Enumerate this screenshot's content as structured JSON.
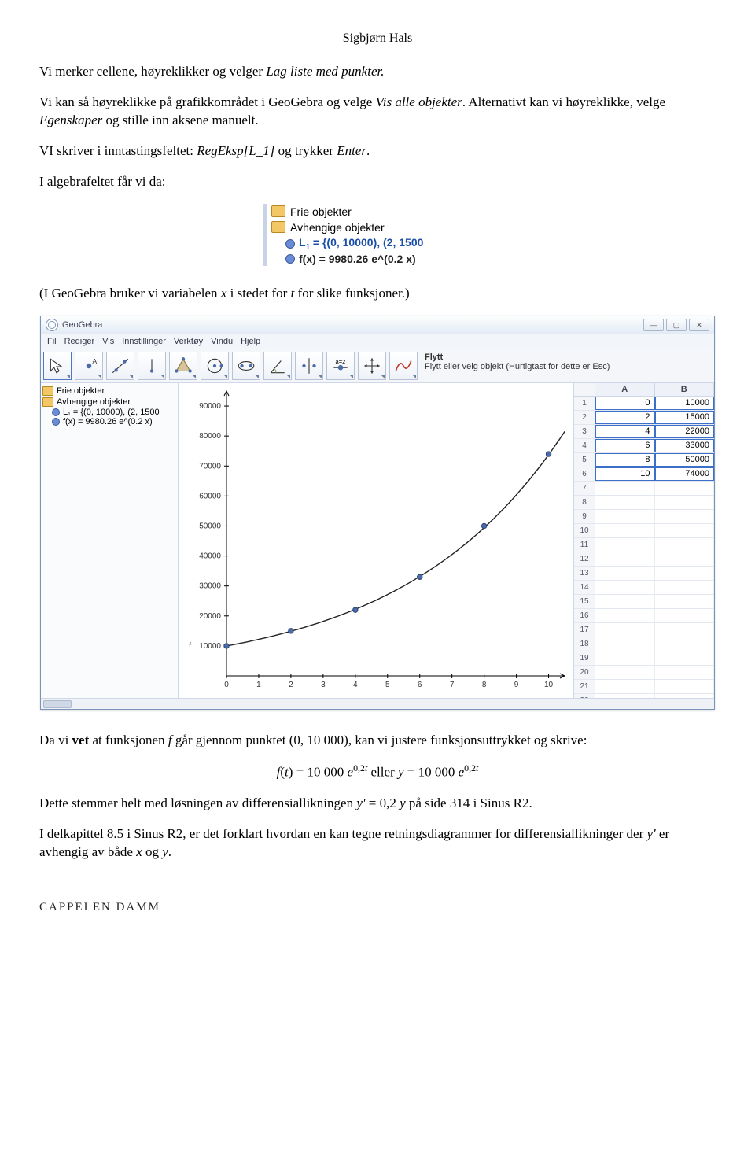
{
  "author": "Sigbjørn Hals",
  "para1_a": "Vi merker cellene, høyreklikker og velger ",
  "para1_b": "Lag liste med punkter.",
  "para2_a": "Vi kan så høyreklikke på grafikkområdet i GeoGebra og velge ",
  "para2_b": "Vis alle objekter",
  "para2_c": ". Alternativt kan vi høyreklikke, velge ",
  "para2_d": "Egenskaper",
  "para2_e": " og stille inn aksene manuelt.",
  "para3_a": "VI skriver i inntastingsfeltet: ",
  "para3_b": "RegEksp[L_1]",
  "para3_c": " og trykker ",
  "para3_d": "Enter",
  "para3_e": ".",
  "para4": "I algebrafeltet får vi da:",
  "alg1_label_free": "Frie objekter",
  "alg1_label_dep": "Avhengige objekter",
  "alg1_L1_html": "L",
  "alg1_L1_sub": "1",
  "alg1_L1_rest": " = {(0, 10000), (2, 1500",
  "alg1_fx": "f(x) = 9980.26 e^(0.2 x)",
  "para5_a": "(I GeoGebra bruker vi variabelen ",
  "para5_b": "x",
  "para5_c": " i stedet for ",
  "para5_d": "t",
  "para5_e": " for slike funksjoner.)",
  "gg": {
    "title": "GeoGebra",
    "menus": [
      "Fil",
      "Rediger",
      "Vis",
      "Innstillinger",
      "Verktøy",
      "Vindu",
      "Hjelp"
    ],
    "tool_title": "Flytt",
    "tool_desc": "Flytt eller velg objekt (Hurtigtast for dette er Esc)",
    "algebra_free": "Frie objekter",
    "algebra_dep": "Avhengige objekter",
    "algebra_L1": "L₁ = {(0, 10000), (2, 1500",
    "algebra_fx": "f(x) = 9980.26 e^(0.2 x)",
    "spreadsheet_cols": [
      "A",
      "B"
    ],
    "spreadsheet": [
      [
        "0",
        "10000"
      ],
      [
        "2",
        "15000"
      ],
      [
        "4",
        "22000"
      ],
      [
        "6",
        "33000"
      ],
      [
        "8",
        "50000"
      ],
      [
        "10",
        "74000"
      ]
    ],
    "colors": {
      "curve": "#222222",
      "point_fill": "#4a6aa8",
      "axis": "#000000",
      "grid_bg": "#ffffff"
    },
    "chart": {
      "type": "line+scatter",
      "xlim": [
        0,
        10.5
      ],
      "ylim": [
        0,
        95000
      ],
      "xtick_step": 1,
      "ytick_step": 10000,
      "ylabel_max": 90000,
      "points": [
        [
          0,
          10000
        ],
        [
          2,
          15000
        ],
        [
          4,
          22000
        ],
        [
          6,
          33000
        ],
        [
          8,
          50000
        ],
        [
          10,
          74000
        ]
      ],
      "curve_label": "f"
    }
  },
  "para6_a": "Da vi ",
  "para6_b": "vet",
  "para6_c": " at funksjonen ",
  "para6_d": "f ",
  "para6_e": " går gjennom punktet (0, 10 000), kan vi justere funksjonsuttrykket og skrive:",
  "eq_a": "f",
  "eq_b": "(",
  "eq_c": "t",
  "eq_d": ") = 10 000 ",
  "eq_e": "e",
  "eq_f": "0,2",
  "eq_g": "t",
  "eq_h": "  eller ",
  "eq_i": "y",
  "eq_j": " = 10 000 ",
  "eq_k": "e",
  "eq_l": "0,2",
  "eq_m": "t",
  "para7_a": "Dette stemmer helt med løsningen av differensiallikningen ",
  "para7_b": "y'",
  "para7_c": " = 0,2 ",
  "para7_d": "y",
  "para7_e": " på side 314 i Sinus R2.",
  "para8_a": "I delkapittel 8.5 i Sinus R2, er det forklart hvordan en kan tegne retningsdiagrammer for differensiallikninger der ",
  "para8_b": "y'",
  "para8_c": " er avhengig av både ",
  "para8_d": "x",
  "para8_e": " og ",
  "para8_f": "y",
  "para8_g": ".",
  "footer": "CAPPELEN DAMM"
}
